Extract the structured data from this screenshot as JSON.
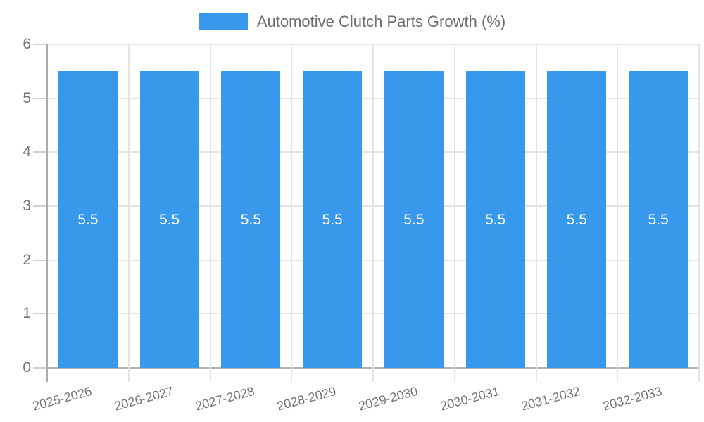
{
  "chart_data": {
    "type": "bar",
    "title": "Automotive Clutch Parts Growth (%)",
    "categories": [
      "2025-2026",
      "2026-2027",
      "2027-2028",
      "2028-2029",
      "2029-2030",
      "2030-2031",
      "2031-2032",
      "2032-2033"
    ],
    "values": [
      5.5,
      5.5,
      5.5,
      5.5,
      5.5,
      5.5,
      5.5,
      5.5
    ],
    "value_labels": [
      "5.5",
      "5.5",
      "5.5",
      "5.5",
      "5.5",
      "5.5",
      "5.5",
      "5.5"
    ],
    "xlabel": "",
    "ylabel": "",
    "ylim": [
      0,
      6
    ],
    "yticks": [
      0,
      1,
      2,
      3,
      4,
      5,
      6
    ],
    "ytick_labels": [
      "0",
      "1",
      "2",
      "3",
      "4",
      "5",
      "6"
    ],
    "grid": true,
    "legend_position": "top",
    "colors": {
      "bar": "#3899EC",
      "bar_label": "#FFFFFF",
      "axis": "#ABABAB",
      "baseline": "#B3B3B3",
      "grid": "#E4E4E4",
      "tick": "#D0D0D0",
      "tick_label": "#757575",
      "legend_text": "#6D6D6D",
      "background": "#FFFFFF"
    }
  }
}
